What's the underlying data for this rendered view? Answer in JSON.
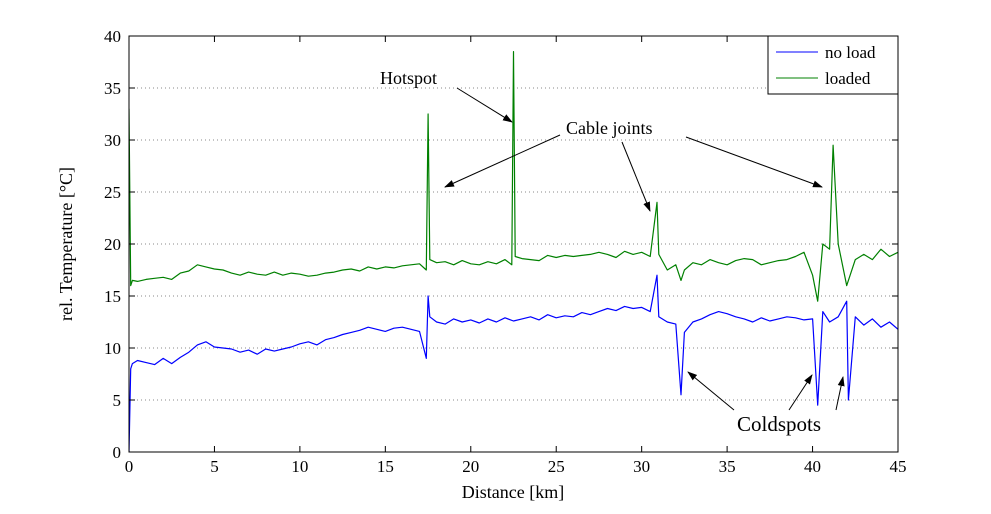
{
  "chart_data": {
    "type": "line",
    "xlabel": "Distance [km]",
    "ylabel": "rel. Temperature [°C]",
    "xlim": [
      0,
      45
    ],
    "ylim": [
      0,
      40
    ],
    "xticks": [
      0,
      5,
      10,
      15,
      20,
      25,
      30,
      35,
      40,
      45
    ],
    "yticks": [
      0,
      5,
      10,
      15,
      20,
      25,
      30,
      35,
      40
    ],
    "grid": "dotted",
    "legend": {
      "placement": "top-right"
    },
    "colors": {
      "no_load": "#0000ff",
      "loaded": "#008000"
    },
    "series": [
      {
        "name": "no load",
        "x": [
          0,
          0.1,
          0.2,
          0.5,
          1,
          1.5,
          2,
          2.5,
          3,
          3.5,
          4,
          4.5,
          5,
          5.5,
          6,
          6.5,
          7,
          7.5,
          8,
          8.5,
          9,
          9.5,
          10,
          10.5,
          11,
          11.5,
          12,
          12.5,
          13,
          13.5,
          14,
          14.5,
          15,
          15.5,
          16,
          16.5,
          17,
          17.4,
          17.5,
          17.6,
          18,
          18.5,
          19,
          19.5,
          20,
          20.5,
          21,
          21.5,
          22,
          22.5,
          23,
          23.5,
          24,
          24.5,
          25,
          25.5,
          26,
          26.5,
          27,
          27.5,
          28,
          28.5,
          29,
          29.5,
          30,
          30.5,
          30.9,
          31,
          31.5,
          32,
          32.3,
          32.5,
          33,
          33.5,
          34,
          34.5,
          35,
          35.5,
          36,
          36.5,
          37,
          37.5,
          38,
          38.5,
          39,
          39.5,
          40,
          40.3,
          40.6,
          41,
          41.5,
          42,
          42.1,
          42.5,
          43,
          43.5,
          44,
          44.5,
          45
        ],
        "values": [
          0,
          8,
          8.5,
          8.8,
          8.6,
          8.4,
          9.0,
          8.5,
          9.1,
          9.6,
          10.3,
          10.6,
          10.1,
          10.0,
          9.9,
          9.6,
          9.8,
          9.4,
          9.9,
          9.7,
          9.9,
          10.1,
          10.4,
          10.6,
          10.3,
          10.8,
          11.0,
          11.3,
          11.5,
          11.7,
          12.0,
          11.8,
          11.6,
          11.9,
          12.0,
          11.8,
          11.6,
          9.0,
          15.0,
          13.0,
          12.5,
          12.3,
          12.8,
          12.5,
          12.7,
          12.4,
          12.8,
          12.5,
          12.9,
          12.6,
          12.8,
          13.0,
          12.7,
          13.2,
          12.9,
          13.1,
          13.0,
          13.4,
          13.2,
          13.5,
          13.8,
          13.6,
          14.0,
          13.8,
          13.9,
          13.5,
          17.0,
          13.0,
          12.5,
          12.3,
          5.5,
          11.5,
          12.5,
          12.8,
          13.2,
          13.5,
          13.3,
          13.0,
          12.8,
          12.5,
          12.9,
          12.6,
          12.8,
          13.0,
          12.9,
          12.7,
          12.8,
          4.5,
          13.5,
          12.5,
          13.0,
          14.5,
          5.0,
          13.0,
          12.2,
          12.8,
          12.0,
          12.5,
          11.8
        ]
      },
      {
        "name": "loaded",
        "x": [
          0,
          0.1,
          0.2,
          0.5,
          1,
          1.5,
          2,
          2.5,
          3,
          3.5,
          4,
          4.5,
          5,
          5.5,
          6,
          6.5,
          7,
          7.5,
          8,
          8.5,
          9,
          9.5,
          10,
          10.5,
          11,
          11.5,
          12,
          12.5,
          13,
          13.5,
          14,
          14.5,
          15,
          15.5,
          16,
          16.5,
          17,
          17.4,
          17.5,
          17.6,
          18,
          18.5,
          19,
          19.5,
          20,
          20.5,
          21,
          21.5,
          22,
          22.4,
          22.5,
          22.6,
          23,
          23.5,
          24,
          24.5,
          25,
          25.5,
          26,
          26.5,
          27,
          27.5,
          28,
          28.5,
          29,
          29.5,
          30,
          30.5,
          30.9,
          31,
          31.5,
          32,
          32.3,
          32.5,
          33,
          33.5,
          34,
          34.5,
          35,
          35.5,
          36,
          36.5,
          37,
          37.5,
          38,
          38.5,
          39,
          39.5,
          40,
          40.3,
          40.6,
          41,
          41.2,
          41.5,
          42,
          42.5,
          43,
          43.5,
          44,
          44.5,
          45
        ],
        "values": [
          33,
          16,
          16.5,
          16.4,
          16.6,
          16.7,
          16.8,
          16.6,
          17.2,
          17.4,
          18.0,
          17.8,
          17.6,
          17.5,
          17.2,
          17.0,
          17.3,
          17.1,
          17.0,
          17.3,
          17.0,
          17.2,
          17.1,
          16.9,
          17.0,
          17.2,
          17.3,
          17.5,
          17.6,
          17.4,
          17.8,
          17.6,
          17.8,
          17.7,
          17.9,
          18.0,
          18.1,
          17.5,
          32.5,
          18.5,
          18.2,
          18.3,
          18.0,
          18.4,
          18.1,
          18.0,
          18.3,
          18.1,
          18.5,
          18.0,
          38.5,
          18.8,
          18.6,
          18.5,
          18.4,
          18.9,
          18.7,
          18.9,
          18.8,
          18.9,
          19.0,
          19.2,
          19.0,
          18.7,
          19.3,
          19.0,
          19.2,
          18.8,
          24.0,
          19.0,
          17.5,
          18.0,
          16.5,
          17.5,
          18.2,
          18.0,
          18.5,
          18.2,
          18.0,
          18.4,
          18.6,
          18.5,
          18.0,
          18.2,
          18.4,
          18.5,
          18.8,
          19.2,
          17.0,
          14.5,
          20.0,
          19.5,
          29.5,
          20.0,
          16.0,
          18.5,
          19.0,
          18.5,
          19.5,
          18.8,
          19.2
        ]
      }
    ],
    "annotations": {
      "hotspot": "Hotspot",
      "cable_joints": "Cable joints",
      "coldspots": "Coldspots"
    }
  }
}
